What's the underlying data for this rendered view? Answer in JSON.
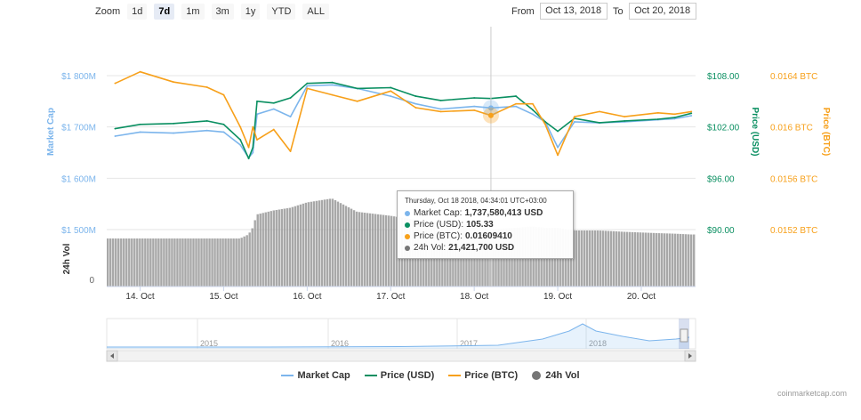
{
  "toolbar": {
    "zoom_label": "Zoom",
    "zoom_buttons": [
      "1d",
      "7d",
      "1m",
      "3m",
      "1y",
      "YTD",
      "ALL"
    ],
    "active_zoom": "7d",
    "from_label": "From",
    "from_value": "Oct 13, 2018",
    "to_label": "To",
    "to_value": "Oct 20, 2018"
  },
  "tooltip": {
    "header": "Thursday, Oct 18 2018, 04:34:01 UTC+03:00",
    "rows": [
      {
        "label": "Market Cap:",
        "value": "1,737,580,413 USD",
        "color": "#7cb5ec"
      },
      {
        "label": "Price (USD):",
        "value": "105.33",
        "color": "#0a8f61"
      },
      {
        "label": "Price (BTC):",
        "value": "0.01609410",
        "color": "#f7a01a"
      },
      {
        "label": "24h Vol:",
        "value": "21,421,700 USD",
        "color": "#767676"
      }
    ]
  },
  "legend": [
    {
      "label": "Market Cap",
      "color": "#7cb5ec",
      "kind": "line"
    },
    {
      "label": "Price (USD)",
      "color": "#0a8f61",
      "kind": "line"
    },
    {
      "label": "Price (BTC)",
      "color": "#f7a01a",
      "kind": "line"
    },
    {
      "label": "24h Vol",
      "color": "#767676",
      "kind": "dot"
    }
  ],
  "credit": "coinmarketcap.com",
  "chart_data": {
    "type": "line",
    "x_ticks": [
      "14. Oct",
      "15. Oct",
      "16. Oct",
      "17. Oct",
      "18. Oct",
      "19. Oct",
      "20. Oct"
    ],
    "y_axes": {
      "market_cap": {
        "title": "Market Cap",
        "ticks": [
          "$1 800M",
          "$1 700M",
          "$1 600M",
          "$1 500M"
        ],
        "values": [
          1800,
          1700,
          1600,
          1500
        ],
        "color": "#7cb5ec"
      },
      "price_usd": {
        "title": "Price (USD)",
        "ticks": [
          "$108.00",
          "$102.00",
          "$96.00",
          "$90.00"
        ],
        "values": [
          108,
          102,
          96,
          90
        ],
        "color": "#0a8f61"
      },
      "price_btc": {
        "title": "Price (BTC)",
        "ticks": [
          "0.0164 BTC",
          "0.016 BTC",
          "0.0156 BTC",
          "0.0152 BTC"
        ],
        "values": [
          0.0164,
          0.016,
          0.0156,
          0.0152
        ],
        "color": "#f7a01a"
      },
      "volume": {
        "title": "24h Vol",
        "ticks": [
          "0"
        ],
        "values": [
          0
        ]
      }
    },
    "x": [
      13.7,
      14.0,
      14.4,
      14.8,
      15.0,
      15.2,
      15.3,
      15.35,
      15.4,
      15.6,
      15.8,
      16.0,
      16.3,
      16.6,
      17.0,
      17.3,
      17.6,
      18.0,
      18.2,
      18.5,
      18.7,
      18.85,
      19.0,
      19.2,
      19.5,
      19.8,
      20.2,
      20.4,
      20.6
    ],
    "series": [
      {
        "name": "Market Cap",
        "unit": "M USD",
        "values": [
          1682,
          1690,
          1688,
          1693,
          1690,
          1665,
          1640,
          1650,
          1725,
          1735,
          1720,
          1780,
          1782,
          1775,
          1760,
          1745,
          1735,
          1740,
          1737,
          1740,
          1725,
          1710,
          1660,
          1710,
          1708,
          1710,
          1714,
          1716,
          1722
        ]
      },
      {
        "name": "Price (USD)",
        "unit": "USD",
        "values": [
          101.8,
          102.3,
          102.4,
          102.7,
          102.3,
          100.5,
          98.3,
          99.6,
          105.0,
          104.8,
          105.4,
          107.1,
          107.2,
          106.5,
          106.6,
          105.6,
          105.1,
          105.4,
          105.33,
          105.6,
          104.0,
          102.6,
          101.5,
          103.0,
          102.5,
          102.7,
          102.9,
          103.1,
          103.6
        ]
      },
      {
        "name": "Price (BTC)",
        "unit": "BTC",
        "values": [
          0.01634,
          0.01643,
          0.01635,
          0.01631,
          0.01625,
          0.016,
          0.01584,
          0.016,
          0.0159,
          0.01598,
          0.01581,
          0.0163,
          0.01625,
          0.0162,
          0.01628,
          0.01615,
          0.01612,
          0.01613,
          0.01609,
          0.01618,
          0.01618,
          0.01602,
          0.01578,
          0.01608,
          0.01612,
          0.01608,
          0.01611,
          0.0161,
          0.01612
        ]
      },
      {
        "name": "24h Vol",
        "unit": "USD",
        "values": [
          18.0,
          18.0,
          18.0,
          18.0,
          18.0,
          18.0,
          19.5,
          22.0,
          27.0,
          28.5,
          29.5,
          31.5,
          33.0,
          28.0,
          26.5,
          25.0,
          24.0,
          23.0,
          21.4,
          22.0,
          22.5,
          22.0,
          22.0,
          21.0,
          21.0,
          20.5,
          20.0,
          19.8,
          19.5
        ]
      }
    ],
    "navigator": {
      "year_labels": [
        "2015",
        "2016",
        "2017",
        "2018"
      ]
    },
    "grid": true
  }
}
